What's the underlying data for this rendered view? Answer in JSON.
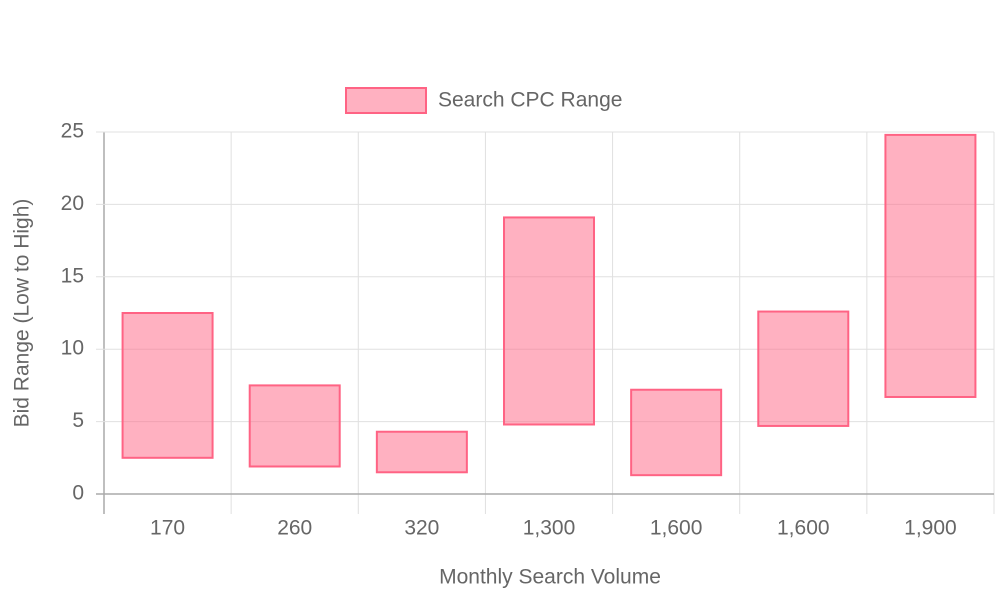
{
  "chart_data": {
    "type": "floating-bar",
    "x_label": "Monthly Search Volume",
    "y_label": "Bid Range (Low to High)",
    "categories": [
      "170",
      "260",
      "320",
      "1,300",
      "1,600",
      "1,600",
      "1,900"
    ],
    "series": [
      {
        "name": "Search CPC Range",
        "color": "#ff6384",
        "values": [
          [
            2.5,
            12.5
          ],
          [
            1.9,
            7.5
          ],
          [
            1.5,
            4.3
          ],
          [
            4.8,
            19.1
          ],
          [
            1.3,
            7.2
          ],
          [
            4.7,
            12.6
          ],
          [
            6.7,
            24.8
          ]
        ]
      }
    ],
    "ylim": [
      0,
      25
    ],
    "yticks": [
      0,
      5,
      10,
      15,
      20,
      25
    ],
    "grid": true,
    "legend": "top"
  }
}
